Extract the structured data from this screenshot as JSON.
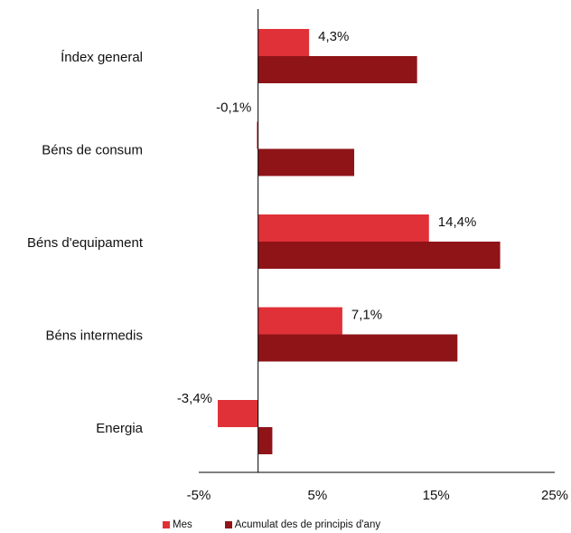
{
  "chart_data": {
    "type": "bar",
    "orientation": "horizontal",
    "categories": [
      "Índex general",
      "Béns de consum",
      "Béns d'equipament",
      "Béns intermedis",
      "Energia"
    ],
    "series": [
      {
        "name": "Mes",
        "color": "#e03138",
        "values": [
          4.3,
          -0.1,
          14.4,
          7.1,
          -3.4
        ],
        "labels": [
          "4,3%",
          "-0,1%",
          "14,4%",
          "7,1%",
          "-3,4%"
        ]
      },
      {
        "name": "Acumulat des de principis d'any",
        "color": "#8f1418",
        "values": [
          13.4,
          8.1,
          20.4,
          16.8,
          1.2
        ]
      }
    ],
    "xlim": [
      -5,
      25
    ],
    "xticks": [
      -5,
      5,
      15,
      25
    ],
    "xtick_labels": [
      "-5%",
      "5%",
      "15%",
      "25%"
    ],
    "grid": false,
    "legend_position": "bottom"
  }
}
